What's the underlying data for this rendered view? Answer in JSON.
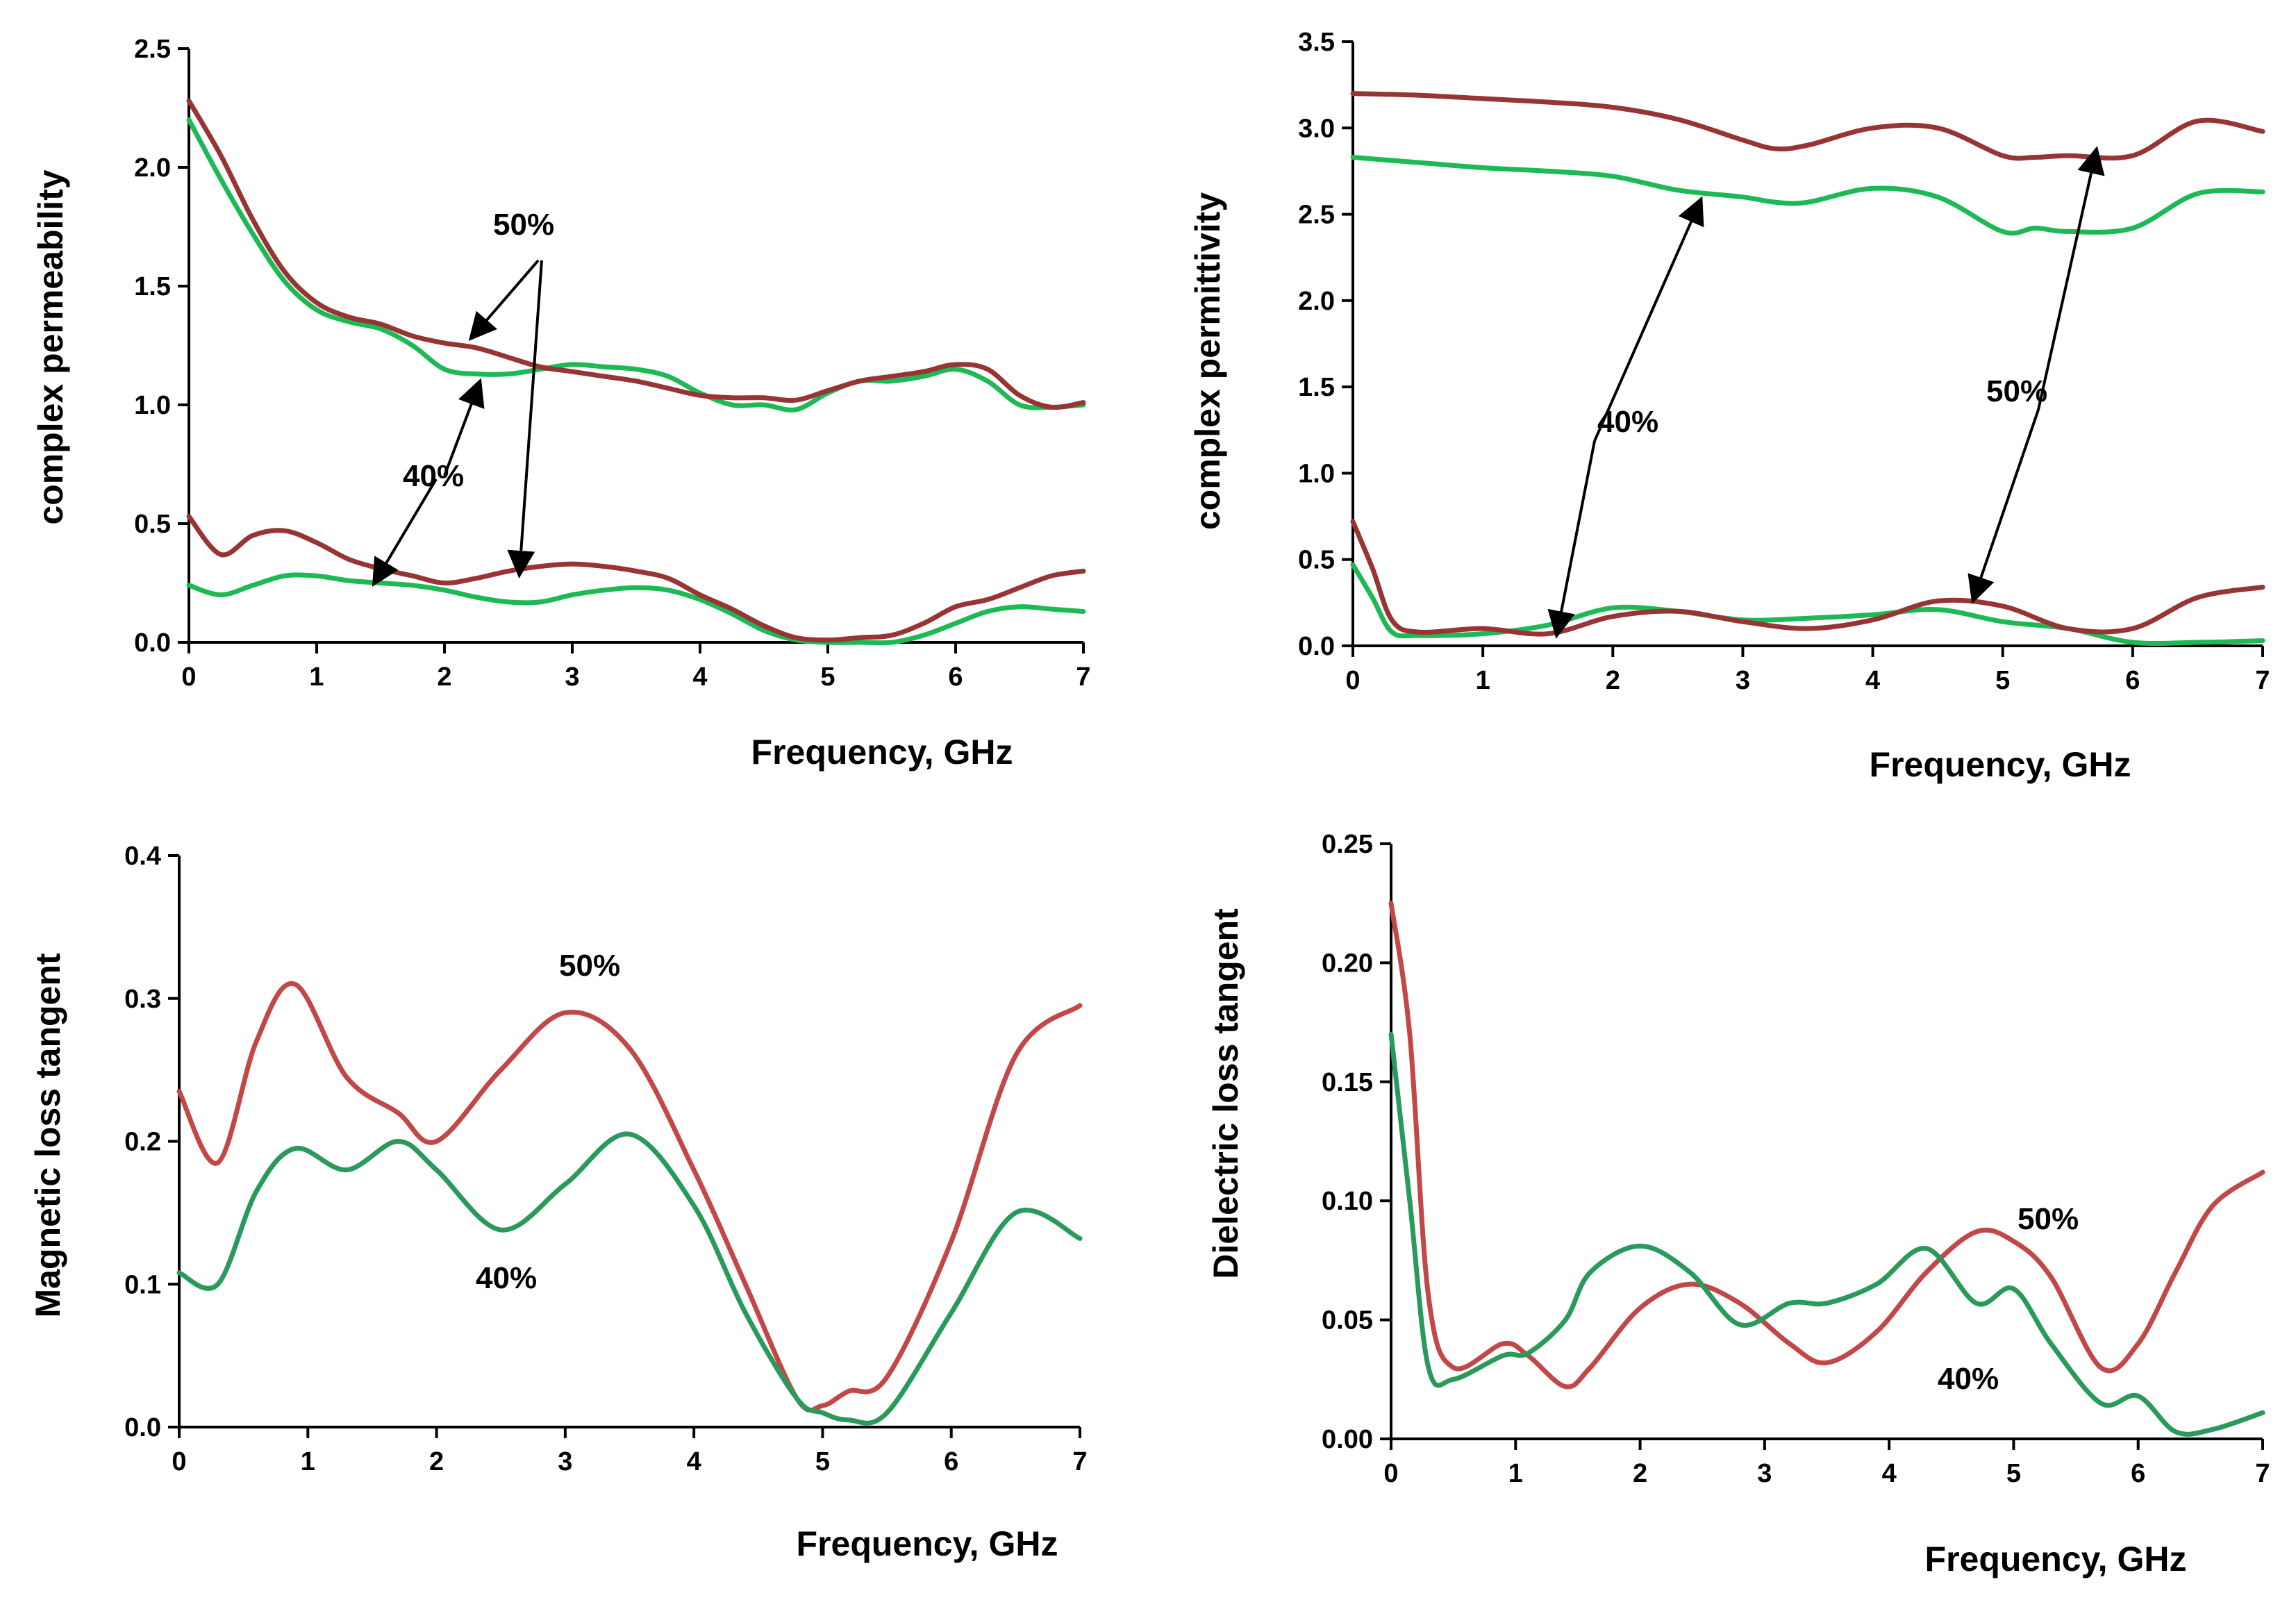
{
  "colors": {
    "green": "#1db954",
    "brown": "#973434",
    "green_dark": "#2a9a5c",
    "red_light": "#c24848"
  },
  "chart_data": [
    {
      "type": "line",
      "xlabel": "Frequency, GHz",
      "ylabel": "complex permeability",
      "xlim": [
        0,
        7
      ],
      "ylim": [
        0,
        2.5
      ],
      "xticks": [
        "0",
        "1",
        "2",
        "3",
        "4",
        "5",
        "6",
        "7"
      ],
      "yticks": [
        "0.0",
        "0.5",
        "1.0",
        "1.5",
        "2.0",
        "2.5"
      ],
      "series": [
        {
          "color": "#1db954",
          "x": [
            0,
            0.25,
            0.5,
            0.75,
            1.0,
            1.25,
            1.5,
            1.75,
            2.0,
            2.25,
            2.5,
            2.75,
            3.0,
            3.25,
            3.5,
            3.75,
            4.0,
            4.25,
            4.5,
            4.75,
            5.0,
            5.25,
            5.5,
            5.75,
            6.0,
            6.25,
            6.5,
            6.75,
            7.0
          ],
          "y": [
            2.2,
            1.95,
            1.72,
            1.52,
            1.4,
            1.35,
            1.32,
            1.25,
            1.15,
            1.13,
            1.13,
            1.15,
            1.17,
            1.16,
            1.15,
            1.12,
            1.05,
            1.0,
            1.0,
            0.98,
            1.05,
            1.1,
            1.1,
            1.12,
            1.15,
            1.1,
            1.0,
            0.99,
            1.0
          ]
        },
        {
          "color": "#973434",
          "x": [
            0,
            0.25,
            0.5,
            0.75,
            1.0,
            1.25,
            1.5,
            1.75,
            2.0,
            2.25,
            2.5,
            2.75,
            3.0,
            3.25,
            3.5,
            3.75,
            4.0,
            4.25,
            4.5,
            4.75,
            5.0,
            5.25,
            5.5,
            5.75,
            6.0,
            6.25,
            6.5,
            6.75,
            7.0
          ],
          "y": [
            2.28,
            2.05,
            1.78,
            1.56,
            1.43,
            1.37,
            1.34,
            1.29,
            1.26,
            1.24,
            1.2,
            1.16,
            1.14,
            1.12,
            1.1,
            1.07,
            1.04,
            1.03,
            1.03,
            1.02,
            1.06,
            1.1,
            1.12,
            1.14,
            1.17,
            1.15,
            1.04,
            0.99,
            1.01
          ]
        },
        {
          "color": "#1db954",
          "x": [
            0,
            0.25,
            0.5,
            0.75,
            1.0,
            1.25,
            1.5,
            1.75,
            2.0,
            2.25,
            2.5,
            2.75,
            3.0,
            3.25,
            3.5,
            3.75,
            4.0,
            4.25,
            4.5,
            4.75,
            5.0,
            5.25,
            5.5,
            5.75,
            6.0,
            6.25,
            6.5,
            6.75,
            7.0
          ],
          "y": [
            0.24,
            0.2,
            0.24,
            0.28,
            0.28,
            0.26,
            0.25,
            0.24,
            0.22,
            0.19,
            0.17,
            0.17,
            0.2,
            0.22,
            0.23,
            0.22,
            0.18,
            0.12,
            0.05,
            0.01,
            0.0,
            0.0,
            0.0,
            0.03,
            0.08,
            0.13,
            0.15,
            0.14,
            0.13
          ]
        },
        {
          "color": "#973434",
          "x": [
            0,
            0.25,
            0.5,
            0.75,
            1.0,
            1.25,
            1.5,
            1.75,
            2.0,
            2.25,
            2.5,
            2.75,
            3.0,
            3.25,
            3.5,
            3.75,
            4.0,
            4.25,
            4.5,
            4.75,
            5.0,
            5.25,
            5.5,
            5.75,
            6.0,
            6.25,
            6.5,
            6.75,
            7.0
          ],
          "y": [
            0.53,
            0.37,
            0.45,
            0.47,
            0.42,
            0.35,
            0.31,
            0.28,
            0.25,
            0.27,
            0.3,
            0.32,
            0.33,
            0.32,
            0.3,
            0.27,
            0.2,
            0.14,
            0.07,
            0.02,
            0.01,
            0.02,
            0.03,
            0.08,
            0.15,
            0.18,
            0.23,
            0.28,
            0.3
          ]
        }
      ],
      "annotations": [
        "50%",
        "40%"
      ]
    },
    {
      "type": "line",
      "xlabel": "Frequency, GHz",
      "ylabel": "complex permittivity",
      "xlim": [
        0,
        7
      ],
      "ylim": [
        0,
        3.5
      ],
      "xticks": [
        "0",
        "1",
        "2",
        "3",
        "4",
        "5",
        "6",
        "7"
      ],
      "yticks": [
        "0.0",
        "0.5",
        "1.0",
        "1.5",
        "2.0",
        "2.5",
        "3.0",
        "3.5"
      ],
      "series": [
        {
          "color": "#1db954",
          "x": [
            0,
            0.5,
            1.0,
            1.5,
            2.0,
            2.5,
            3.0,
            3.25,
            3.5,
            4.0,
            4.5,
            5.0,
            5.25,
            5.5,
            6.0,
            6.5,
            7.0
          ],
          "y": [
            2.83,
            2.8,
            2.77,
            2.75,
            2.72,
            2.64,
            2.6,
            2.57,
            2.57,
            2.65,
            2.6,
            2.4,
            2.42,
            2.4,
            2.42,
            2.62,
            2.63
          ]
        },
        {
          "color": "#973434",
          "x": [
            0,
            0.5,
            1.0,
            1.5,
            2.0,
            2.5,
            3.0,
            3.25,
            3.5,
            4.0,
            4.5,
            5.0,
            5.25,
            5.5,
            6.0,
            6.5,
            7.0
          ],
          "y": [
            3.2,
            3.19,
            3.17,
            3.15,
            3.12,
            3.05,
            2.93,
            2.88,
            2.9,
            3.0,
            3.0,
            2.84,
            2.83,
            2.84,
            2.84,
            3.04,
            2.98
          ]
        },
        {
          "color": "#1db954",
          "x": [
            0,
            0.15,
            0.3,
            0.5,
            1.0,
            1.5,
            2.0,
            2.5,
            3.0,
            3.5,
            4.0,
            4.5,
            5.0,
            5.5,
            6.0,
            6.5,
            7.0
          ],
          "y": [
            0.47,
            0.28,
            0.08,
            0.06,
            0.07,
            0.12,
            0.22,
            0.2,
            0.15,
            0.16,
            0.18,
            0.21,
            0.14,
            0.1,
            0.02,
            0.02,
            0.03
          ]
        },
        {
          "color": "#973434",
          "x": [
            0,
            0.15,
            0.3,
            0.5,
            1.0,
            1.5,
            2.0,
            2.5,
            3.0,
            3.5,
            4.0,
            4.5,
            5.0,
            5.5,
            6.0,
            6.5,
            7.0
          ],
          "y": [
            0.72,
            0.45,
            0.15,
            0.08,
            0.1,
            0.07,
            0.17,
            0.2,
            0.14,
            0.1,
            0.15,
            0.26,
            0.23,
            0.1,
            0.1,
            0.28,
            0.34
          ]
        }
      ],
      "annotations": [
        "40%",
        "50%"
      ]
    },
    {
      "type": "line",
      "xlabel": "Frequency, GHz",
      "ylabel": "Magnetic loss tangent",
      "xlim": [
        0,
        7
      ],
      "ylim": [
        0,
        0.4
      ],
      "xticks": [
        "0",
        "1",
        "2",
        "3",
        "4",
        "5",
        "6",
        "7"
      ],
      "yticks": [
        "0.0",
        "0.1",
        "0.2",
        "0.3",
        "0.4"
      ],
      "series": [
        {
          "color": "#c24848",
          "x": [
            0,
            0.3,
            0.6,
            0.9,
            1.3,
            1.7,
            2.0,
            2.5,
            3.0,
            3.5,
            4.0,
            4.4,
            4.8,
            5.0,
            5.2,
            5.5,
            6.0,
            6.5,
            7.0
          ],
          "y": [
            0.235,
            0.185,
            0.27,
            0.31,
            0.245,
            0.22,
            0.2,
            0.25,
            0.29,
            0.265,
            0.18,
            0.1,
            0.02,
            0.015,
            0.025,
            0.035,
            0.13,
            0.26,
            0.295
          ]
        },
        {
          "color": "#2a9a5c",
          "x": [
            0,
            0.3,
            0.6,
            0.9,
            1.3,
            1.7,
            2.0,
            2.5,
            3.0,
            3.5,
            4.0,
            4.4,
            4.8,
            5.0,
            5.2,
            5.5,
            6.0,
            6.5,
            7.0
          ],
          "y": [
            0.108,
            0.1,
            0.165,
            0.195,
            0.18,
            0.2,
            0.18,
            0.138,
            0.17,
            0.205,
            0.155,
            0.08,
            0.02,
            0.01,
            0.005,
            0.01,
            0.08,
            0.15,
            0.132
          ]
        }
      ],
      "annotations": [
        "50%",
        "40%"
      ]
    },
    {
      "type": "line",
      "xlabel": "Frequency, GHz",
      "ylabel": "Dielectric loss tangent",
      "xlim": [
        0,
        7
      ],
      "ylim": [
        0,
        0.25
      ],
      "xticks": [
        "0",
        "1",
        "2",
        "3",
        "4",
        "5",
        "6",
        "7"
      ],
      "yticks": [
        "0.00",
        "0.05",
        "0.10",
        "0.15",
        "0.20",
        "0.25"
      ],
      "series": [
        {
          "color": "#c24848",
          "x": [
            0,
            0.15,
            0.3,
            0.5,
            0.9,
            1.1,
            1.4,
            1.6,
            2.0,
            2.4,
            2.8,
            3.2,
            3.5,
            3.9,
            4.3,
            4.7,
            5.0,
            5.3,
            5.7,
            6.0,
            6.3,
            6.6,
            7.0
          ],
          "y": [
            0.225,
            0.17,
            0.06,
            0.03,
            0.04,
            0.035,
            0.022,
            0.03,
            0.055,
            0.065,
            0.057,
            0.04,
            0.032,
            0.045,
            0.07,
            0.087,
            0.083,
            0.068,
            0.03,
            0.04,
            0.07,
            0.098,
            0.112
          ]
        },
        {
          "color": "#2a9a5c",
          "x": [
            0,
            0.15,
            0.3,
            0.5,
            0.9,
            1.1,
            1.4,
            1.6,
            2.0,
            2.4,
            2.8,
            3.2,
            3.5,
            3.9,
            4.3,
            4.7,
            5.0,
            5.3,
            5.7,
            6.0,
            6.3,
            6.6,
            7.0
          ],
          "y": [
            0.17,
            0.1,
            0.03,
            0.025,
            0.035,
            0.036,
            0.05,
            0.07,
            0.081,
            0.07,
            0.048,
            0.057,
            0.057,
            0.065,
            0.08,
            0.057,
            0.063,
            0.04,
            0.015,
            0.018,
            0.003,
            0.004,
            0.011
          ]
        }
      ],
      "annotations": [
        "50%",
        "40%"
      ]
    }
  ]
}
